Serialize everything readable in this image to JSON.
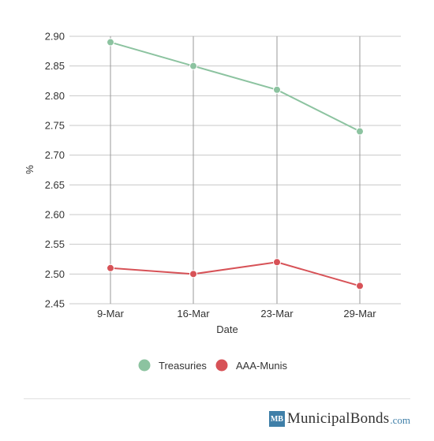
{
  "chart_data": {
    "type": "line",
    "title": "",
    "xlabel": "Date",
    "ylabel": "%",
    "categories": [
      "9-Mar",
      "16-Mar",
      "23-Mar",
      "29-Mar"
    ],
    "ylim": [
      2.45,
      2.9
    ],
    "yticks": [
      "2.90",
      "2.85",
      "2.80",
      "2.75",
      "2.70",
      "2.65",
      "2.60",
      "2.55",
      "2.50",
      "2.45"
    ],
    "grid": true,
    "legend_position": "bottom",
    "series": [
      {
        "name": "Treasuries",
        "color": "#8cc3a0",
        "values": [
          2.89,
          2.85,
          2.81,
          2.74
        ]
      },
      {
        "name": "AAA-Munis",
        "color": "#d75257",
        "values": [
          2.51,
          2.5,
          2.52,
          2.48
        ]
      }
    ]
  },
  "brand": {
    "badge": "MB",
    "name": "MunicipalBonds",
    "tld": ".com",
    "badge_color": "#3f7fa8"
  }
}
